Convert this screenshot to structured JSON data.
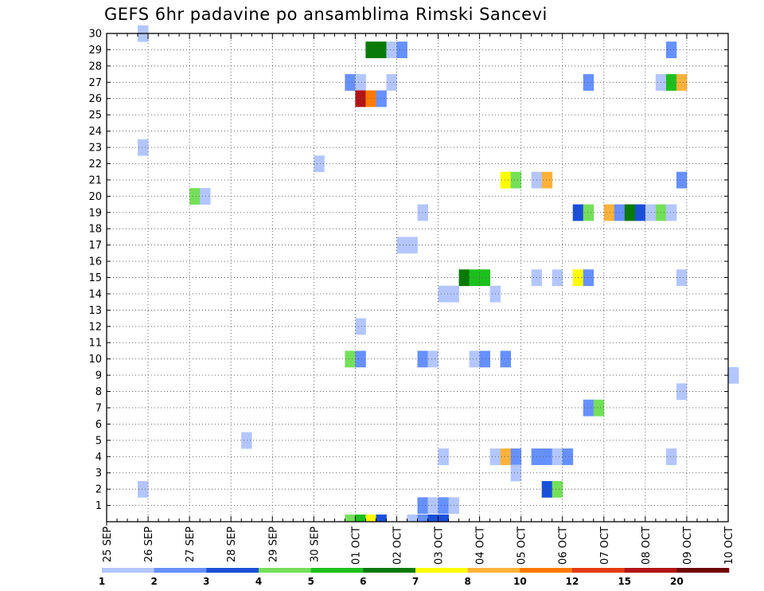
{
  "chart_data": {
    "type": "heatmap",
    "title": "GEFS 6hr padavine po ansamblima Rimski Sancevi",
    "xlabel": "",
    "ylabel": "",
    "x_tick_labels": [
      "25 SEP",
      "26 SEP",
      "27 SEP",
      "28 SEP",
      "29 SEP",
      "30 SEP",
      "01 OCT",
      "02 OCT",
      "03 OCT",
      "04 OCT",
      "05 OCT",
      "06 OCT",
      "07 OCT",
      "08 OCT",
      "09 OCT",
      "10 OCT"
    ],
    "x_steps_per_day": 4,
    "x_range_steps": [
      0,
      60
    ],
    "y_tick_labels": [
      "1",
      "2",
      "3",
      "4",
      "5",
      "6",
      "7",
      "8",
      "9",
      "10",
      "11",
      "12",
      "13",
      "14",
      "15",
      "16",
      "17",
      "18",
      "19",
      "20",
      "21",
      "22",
      "23",
      "24",
      "25",
      "26",
      "27",
      "28",
      "29",
      "30"
    ],
    "y_range": [
      0,
      30
    ],
    "grid": true,
    "colorbar": {
      "thresholds": [
        "1",
        "2",
        "3",
        "4",
        "5",
        "6",
        "7",
        "8",
        "10",
        "12",
        "15",
        "20"
      ],
      "colors": [
        "#b3c6ff",
        "#6690ff",
        "#1a4fd9",
        "#74e05a",
        "#1cc01c",
        "#077a07",
        "#ffff00",
        "#ffb23a",
        "#ff7a00",
        "#e53b0f",
        "#b31414",
        "#6e0505"
      ]
    },
    "cells": [
      [
        3,
        30,
        1
      ],
      [
        3,
        2,
        1
      ],
      [
        3,
        23,
        1
      ],
      [
        8,
        20,
        4
      ],
      [
        9,
        20,
        1
      ],
      [
        13,
        5,
        1
      ],
      [
        20,
        22,
        1
      ],
      [
        23,
        0,
        4
      ],
      [
        24,
        0,
        5
      ],
      [
        25,
        0,
        7
      ],
      [
        26,
        0,
        3
      ],
      [
        23,
        10,
        4
      ],
      [
        24,
        10,
        2
      ],
      [
        23,
        27,
        2
      ],
      [
        24,
        27,
        1
      ],
      [
        24,
        26,
        11
      ],
      [
        25,
        26,
        9
      ],
      [
        26,
        26,
        2
      ],
      [
        24,
        12,
        1
      ],
      [
        25,
        29,
        6
      ],
      [
        26,
        29,
        6
      ],
      [
        27,
        29,
        1
      ],
      [
        28,
        29,
        2
      ],
      [
        27,
        27,
        1
      ],
      [
        28,
        17,
        1
      ],
      [
        29,
        17,
        1
      ],
      [
        29,
        0,
        1
      ],
      [
        30,
        0,
        2
      ],
      [
        30,
        1,
        2
      ],
      [
        30,
        10,
        2
      ],
      [
        31,
        10,
        1
      ],
      [
        31,
        0,
        3
      ],
      [
        32,
        0,
        3
      ],
      [
        31,
        1,
        1
      ],
      [
        32,
        1,
        2
      ],
      [
        33,
        1,
        1
      ],
      [
        30,
        19,
        1
      ],
      [
        32,
        14,
        1
      ],
      [
        33,
        14,
        1
      ],
      [
        32,
        4,
        1
      ],
      [
        34,
        15,
        6
      ],
      [
        35,
        15,
        5
      ],
      [
        36,
        15,
        5
      ],
      [
        35,
        10,
        1
      ],
      [
        36,
        10,
        2
      ],
      [
        37,
        14,
        1
      ],
      [
        37,
        4,
        1
      ],
      [
        38,
        4,
        8
      ],
      [
        39,
        4,
        2
      ],
      [
        38,
        10,
        2
      ],
      [
        38,
        21,
        7
      ],
      [
        39,
        21,
        4
      ],
      [
        39,
        3,
        1
      ],
      [
        41,
        15,
        1
      ],
      [
        41,
        21,
        1
      ],
      [
        42,
        21,
        8
      ],
      [
        41,
        4,
        2
      ],
      [
        42,
        4,
        2
      ],
      [
        43,
        4,
        1
      ],
      [
        44,
        4,
        2
      ],
      [
        42,
        2,
        3
      ],
      [
        43,
        2,
        4
      ],
      [
        43,
        15,
        1
      ],
      [
        45,
        15,
        7
      ],
      [
        46,
        15,
        2
      ],
      [
        45,
        19,
        3
      ],
      [
        46,
        19,
        4
      ],
      [
        46,
        27,
        2
      ],
      [
        46,
        7,
        2
      ],
      [
        47,
        7,
        4
      ],
      [
        48,
        19,
        8
      ],
      [
        49,
        19,
        2
      ],
      [
        50,
        19,
        6
      ],
      [
        51,
        19,
        3
      ],
      [
        52,
        19,
        1
      ],
      [
        53,
        19,
        4
      ],
      [
        54,
        19,
        1
      ],
      [
        53,
        27,
        1
      ],
      [
        54,
        27,
        5
      ],
      [
        55,
        27,
        8
      ],
      [
        54,
        29,
        2
      ],
      [
        55,
        15,
        1
      ],
      [
        54,
        4,
        1
      ],
      [
        55,
        8,
        1
      ],
      [
        55,
        21,
        2
      ],
      [
        60,
        9,
        1
      ]
    ]
  }
}
